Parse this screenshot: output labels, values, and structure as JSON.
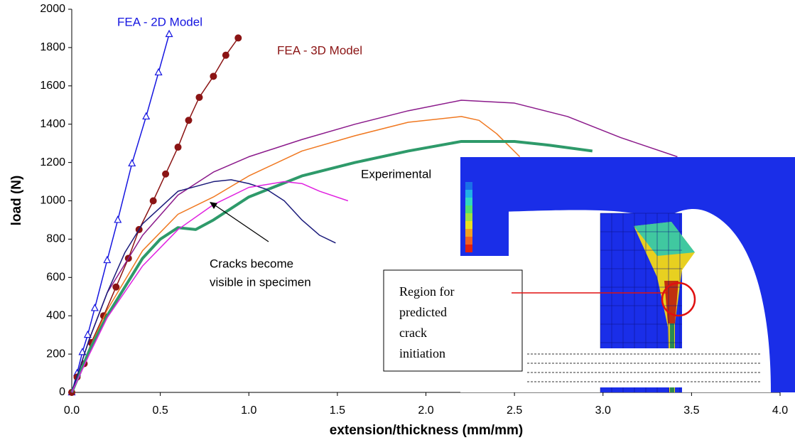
{
  "chart_data": {
    "type": "line",
    "x_label": "extension/thickness (mm/mm)",
    "y_label": "load (N)",
    "xlim": [
      0,
      4
    ],
    "ylim": [
      0,
      2000
    ],
    "xticks": [
      {
        "value": 0,
        "label": "0.0"
      },
      0.5,
      {
        "value": 1,
        "label": "1.0"
      },
      1.5,
      {
        "value": 2,
        "label": "2.0"
      },
      2.5,
      {
        "value": 3,
        "label": "3.0"
      },
      3.5,
      {
        "value": 4,
        "label": "4.0"
      }
    ],
    "yticks": [
      0,
      200,
      400,
      600,
      800,
      1000,
      1200,
      1400,
      1600,
      1800,
      2000
    ],
    "grid": false,
    "series": [
      {
        "name": "FEA - 2D Model",
        "color": "#1515e0",
        "marker": "triangle",
        "x": [
          0,
          0.03,
          0.06,
          0.09,
          0.13,
          0.2,
          0.26,
          0.34,
          0.42,
          0.49,
          0.55
        ],
        "values": [
          0,
          100,
          210,
          300,
          440,
          690,
          900,
          1195,
          1440,
          1670,
          1870
        ]
      },
      {
        "name": "FEA - 3D Model",
        "color": "#8b1414",
        "marker": "circle",
        "x": [
          0,
          0.03,
          0.07,
          0.11,
          0.18,
          0.25,
          0.32,
          0.38,
          0.46,
          0.53,
          0.6,
          0.66,
          0.72,
          0.8,
          0.87,
          0.94
        ],
        "values": [
          0,
          80,
          150,
          260,
          400,
          550,
          700,
          850,
          1000,
          1140,
          1280,
          1420,
          1540,
          1650,
          1760,
          1850
        ]
      },
      {
        "color": "#8b1a8b",
        "width": 1.5,
        "x": [
          0,
          0.1,
          0.2,
          0.4,
          0.6,
          0.8,
          1.0,
          1.3,
          1.6,
          1.9,
          2.2,
          2.5,
          2.8,
          3.1,
          3.42
        ],
        "values": [
          0,
          280,
          520,
          820,
          1030,
          1150,
          1230,
          1320,
          1400,
          1470,
          1525,
          1510,
          1440,
          1330,
          1230
        ]
      },
      {
        "color": "#f07820",
        "width": 1.5,
        "x": [
          0,
          0.1,
          0.2,
          0.4,
          0.6,
          0.8,
          1.0,
          1.3,
          1.6,
          1.9,
          2.2,
          2.3,
          2.4,
          2.53
        ],
        "values": [
          0,
          230,
          430,
          740,
          930,
          1020,
          1130,
          1260,
          1340,
          1410,
          1440,
          1420,
          1350,
          1230
        ]
      },
      {
        "color": "#2e9a6a",
        "width": 4,
        "x": [
          0,
          0.1,
          0.2,
          0.4,
          0.5,
          0.6,
          0.7,
          0.8,
          1.0,
          1.3,
          1.6,
          1.9,
          2.2,
          2.5,
          2.7,
          2.94
        ],
        "values": [
          0,
          220,
          400,
          700,
          800,
          860,
          850,
          900,
          1020,
          1130,
          1200,
          1260,
          1310,
          1310,
          1290,
          1260
        ]
      },
      {
        "color": "#1a1a7a",
        "width": 1.5,
        "x": [
          0,
          0.1,
          0.2,
          0.3,
          0.4,
          0.6,
          0.8,
          0.9,
          1.0,
          1.1,
          1.2,
          1.3,
          1.4,
          1.49
        ],
        "values": [
          0,
          280,
          520,
          730,
          880,
          1050,
          1100,
          1110,
          1090,
          1060,
          1000,
          900,
          820,
          780
        ]
      },
      {
        "color": "#e020e0",
        "width": 1.5,
        "x": [
          0,
          0.1,
          0.2,
          0.4,
          0.6,
          0.8,
          1.0,
          1.2,
          1.3,
          1.4,
          1.56
        ],
        "values": [
          0,
          200,
          390,
          660,
          850,
          980,
          1070,
          1100,
          1090,
          1050,
          1000
        ]
      }
    ],
    "annotations": [
      {
        "lines": [
          "Experimental"
        ]
      },
      {
        "lines": [
          "Cracks become",
          "visible in specimen"
        ]
      },
      {
        "lines": [
          "Region for",
          "predicted",
          "crack",
          "initiation"
        ]
      }
    ]
  }
}
